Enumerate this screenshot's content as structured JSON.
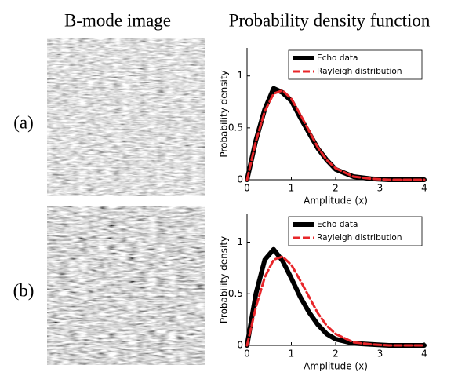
{
  "headers": {
    "left": "B-mode image",
    "right": "Probability density function"
  },
  "panel_labels": [
    "(a)",
    "(b)"
  ],
  "chart_data": [
    {
      "type": "line",
      "xlabel": "Amplitude (x)",
      "ylabel": "Probability density",
      "x": [
        0,
        0.2,
        0.4,
        0.6,
        0.8,
        1.0,
        1.2,
        1.4,
        1.6,
        1.8,
        2.0,
        2.4,
        2.8,
        3.2,
        3.6,
        4.0
      ],
      "series": [
        {
          "name": "Echo data",
          "color": "#000000",
          "values": [
            0,
            0.38,
            0.68,
            0.88,
            0.84,
            0.76,
            0.6,
            0.45,
            0.3,
            0.19,
            0.1,
            0.03,
            0.01,
            0,
            0,
            0
          ]
        },
        {
          "name": "Rayleigh distribution",
          "color": "#e8262a",
          "values": [
            0,
            0.37,
            0.66,
            0.83,
            0.86,
            0.78,
            0.63,
            0.47,
            0.31,
            0.19,
            0.11,
            0.03,
            0.01,
            0,
            0,
            0
          ]
        }
      ],
      "xlim": [
        0,
        4
      ],
      "ylim": [
        0,
        1.27
      ],
      "xticks": [
        0,
        1,
        2,
        3,
        4
      ],
      "yticks": [
        0,
        0.5,
        1
      ],
      "legend": "upper right"
    },
    {
      "type": "line",
      "xlabel": "Amplitude (x)",
      "ylabel": "Probability density",
      "x": [
        0,
        0.2,
        0.4,
        0.6,
        0.8,
        1.0,
        1.2,
        1.4,
        1.6,
        1.8,
        2.0,
        2.4,
        2.8,
        3.2,
        3.6,
        4.0
      ],
      "series": [
        {
          "name": "Echo data",
          "color": "#000000",
          "values": [
            0,
            0.5,
            0.83,
            0.93,
            0.82,
            0.65,
            0.47,
            0.32,
            0.2,
            0.11,
            0.06,
            0.02,
            0.01,
            0,
            0,
            0
          ]
        },
        {
          "name": "Rayleigh distribution",
          "color": "#e8262a",
          "values": [
            0,
            0.37,
            0.66,
            0.83,
            0.86,
            0.78,
            0.63,
            0.47,
            0.31,
            0.19,
            0.11,
            0.03,
            0.01,
            0,
            0,
            0
          ]
        }
      ],
      "xlim": [
        0,
        4
      ],
      "ylim": [
        0,
        1.27
      ],
      "xticks": [
        0,
        1,
        2,
        3,
        4
      ],
      "yticks": [
        0,
        0.5,
        1
      ],
      "legend": "upper right"
    }
  ]
}
